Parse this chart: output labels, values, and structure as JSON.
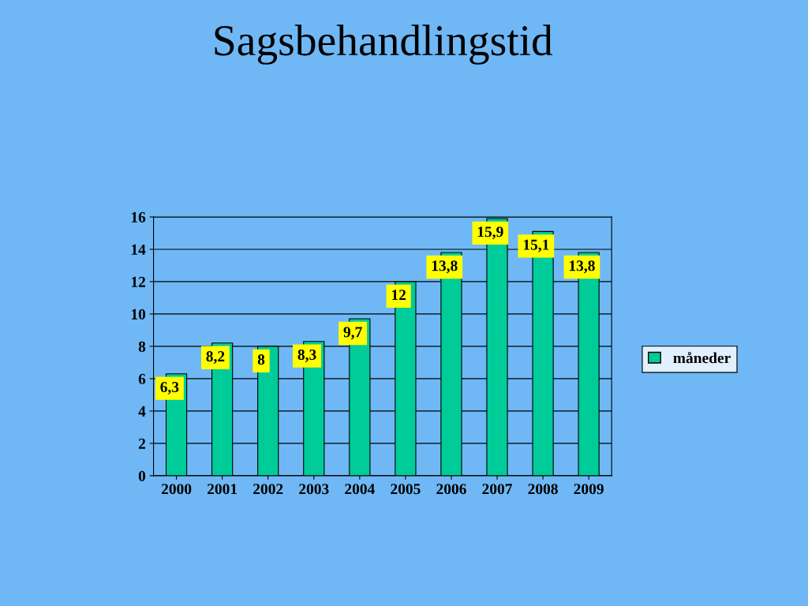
{
  "chart_data": {
    "type": "bar",
    "title": "Sagsbehandlingstid",
    "categories": [
      "2000",
      "2001",
      "2002",
      "2003",
      "2004",
      "2005",
      "2006",
      "2007",
      "2008",
      "2009"
    ],
    "series": [
      {
        "name": "måneder",
        "color": "#00cc99",
        "values": [
          6.3,
          8.2,
          8,
          8.3,
          9.7,
          12,
          13.8,
          15.9,
          15.1,
          13.8
        ],
        "value_labels": [
          "6,3",
          "8,2",
          "8",
          "8,3",
          "9,7",
          "12",
          "13,8",
          "15,9",
          "15,1",
          "13,8"
        ]
      }
    ],
    "ylim": [
      0,
      16
    ],
    "yticks": [
      0,
      2,
      4,
      6,
      8,
      10,
      12,
      14,
      16
    ],
    "grid": "y",
    "legend": "right"
  }
}
